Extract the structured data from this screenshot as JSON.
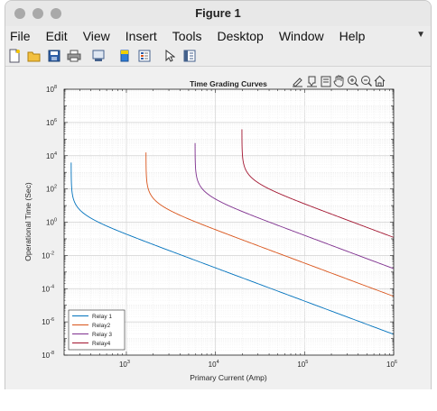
{
  "window": {
    "title": "Figure 1"
  },
  "menubar": {
    "items": [
      "File",
      "Edit",
      "View",
      "Insert",
      "Tools",
      "Desktop",
      "Window",
      "Help"
    ]
  },
  "toolbar": {
    "icons": [
      "new-figure-icon",
      "open-file-icon",
      "save-icon",
      "print-icon",
      "link-plot-icon",
      "colorbar-icon",
      "legend-icon",
      "select-arrow-icon",
      "property-inspector-icon"
    ]
  },
  "axes_toolbar": {
    "icons": [
      "brush-icon",
      "data-tips-icon",
      "export-icon",
      "pan-icon",
      "zoom-in-icon",
      "zoom-out-icon",
      "home-icon"
    ]
  },
  "chart_data": {
    "type": "line",
    "title": "Time Grading Curves",
    "xlabel": "Primary Current (Amp)",
    "ylabel": "Operational Time (Sec)",
    "xscale": "log",
    "yscale": "log",
    "xlim": [
      200,
      1000000
    ],
    "ylim": [
      1e-08,
      100000000.0
    ],
    "x_ticks": [
      "10^3",
      "10^4",
      "10^5",
      "10^6"
    ],
    "y_ticks": [
      "10^-8",
      "10^-6",
      "10^-4",
      "10^-2",
      "10^0",
      "10^2",
      "10^4",
      "10^6",
      "10^8"
    ],
    "grid": true,
    "legend_position": "bottom-left",
    "series": [
      {
        "name": "Relay 1",
        "color": "#0072bd",
        "pickup": 240,
        "k": 3.1,
        "x_end": 1000000
      },
      {
        "name": "Relay2",
        "color": "#d95319",
        "pickup": 1660,
        "k": 12.5,
        "x_end": 1000000
      },
      {
        "name": "Relay 3",
        "color": "#7e2f8e",
        "pickup": 5900,
        "k": 46,
        "x_end": 1000000
      },
      {
        "name": "Relay4",
        "color": "#a2142f",
        "pickup": 19800,
        "k": 310,
        "x_end": 1000000
      }
    ]
  }
}
